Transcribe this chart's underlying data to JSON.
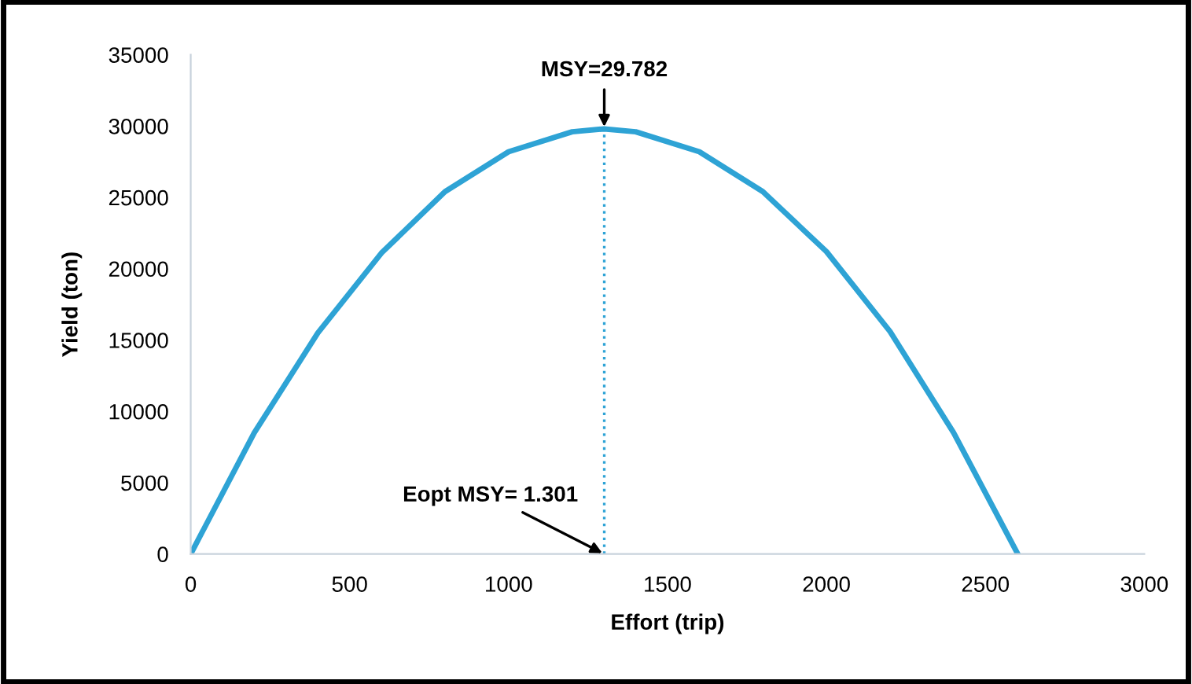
{
  "chart_data": {
    "type": "line",
    "xlabel": "Effort (trip)",
    "ylabel": "Yield (ton)",
    "xlim": [
      0,
      3000
    ],
    "xticks": [
      0,
      500,
      1000,
      1500,
      2000,
      2500,
      3000
    ],
    "ylim": [
      0,
      35000
    ],
    "yticks": [
      0,
      5000,
      10000,
      15000,
      20000,
      25000,
      30000,
      35000
    ],
    "grid": false,
    "legend": false,
    "marker": "none",
    "series": [
      {
        "color": "#2ea3d5",
        "line_style": "solid",
        "x": [
          0,
          200,
          400,
          600,
          800,
          1000,
          1200,
          1301,
          1400,
          1600,
          1800,
          2000,
          2200,
          2400,
          2602
        ],
        "values": [
          0,
          8500,
          15500,
          21100,
          25400,
          28200,
          29600,
          29800,
          29600,
          28200,
          25400,
          21200,
          15600,
          8500,
          0
        ]
      },
      {
        "color": "#2ea3d5",
        "line_style": "dotted",
        "x": [
          1301,
          1301
        ],
        "values": [
          0,
          29800
        ]
      }
    ],
    "annotations": [
      {
        "text": "MSY=29.782",
        "x": 1301,
        "y": 29800
      },
      {
        "text": "Eopt MSY= 1.301",
        "x": 1301,
        "y": 0
      }
    ]
  }
}
